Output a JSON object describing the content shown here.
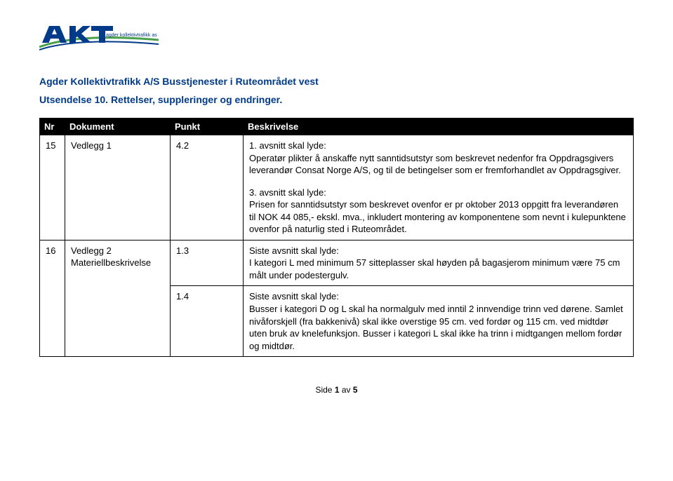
{
  "logo": {
    "subtext": "agder kollektivtrafikk as",
    "primary_color": "#003b8a",
    "accent_color": "#4aa04a"
  },
  "header": {
    "line1": "Agder Kollektivtrafikk A/S Busstjenester i Ruteområdet vest",
    "line2": "Utsendelse 10. Rettelser, suppleringer og endringer."
  },
  "table": {
    "headers": {
      "nr": "Nr",
      "dokument": "Dokument",
      "punkt": "Punkt",
      "beskrivelse": "Beskrivelse"
    },
    "rows": [
      {
        "nr": "15",
        "dokument": "Vedlegg 1",
        "punkt": "4.2",
        "beskrivelse": [
          "1. avsnitt skal lyde:\nOperatør plikter å anskaffe nytt sanntidsutstyr som beskrevet nedenfor fra Oppdragsgivers leverandør Consat Norge A/S, og til de betingelser som er fremforhandlet av Oppdragsgiver.",
          "3. avsnitt skal lyde:\nPrisen for sanntidsutstyr som beskrevet ovenfor er pr oktober 2013 oppgitt fra leverandøren til NOK 44 085,- ekskl. mva., inkludert montering av komponentene som nevnt i kulepunktene ovenfor på naturlig sted i Ruteområdet."
        ]
      },
      {
        "nr": "16",
        "dokument": "Vedlegg 2\nMateriellbeskrivelse",
        "sub": [
          {
            "punkt": "1.3",
            "beskrivelse": "Siste avsnitt skal lyde:\nI kategori L med minimum 57 sitteplasser skal høyden på bagasjerom minimum være 75 cm målt under podestergulv."
          },
          {
            "punkt": "1.4",
            "beskrivelse": "Siste avsnitt skal lyde:\nBusser i kategori D og L skal ha normalgulv med inntil 2 innvendige trinn ved dørene. Samlet nivåforskjell (fra bakkenivå) skal ikke overstige 95 cm. ved fordør og 115 cm. ved midtdør uten bruk av knelefunksjon. Busser i kategori L skal ikke ha trinn i midtgangen mellom fordør og midtdør."
          }
        ]
      }
    ]
  },
  "footer": {
    "page_label_prefix": "Side ",
    "page_current": "1",
    "page_sep": " av ",
    "page_total": "5"
  }
}
